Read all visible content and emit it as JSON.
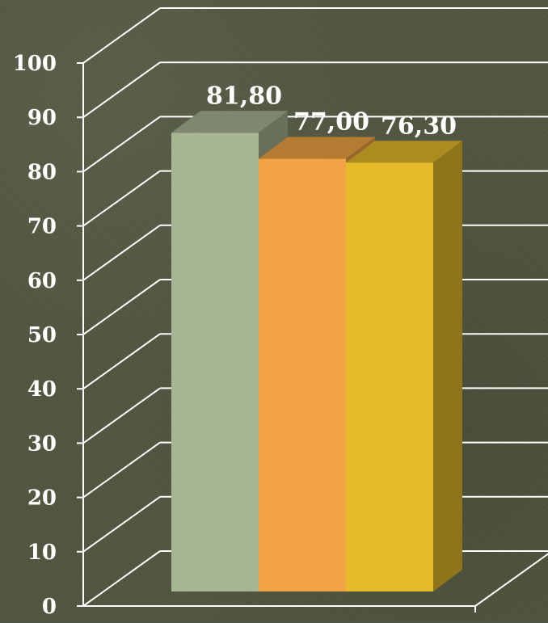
{
  "chart_data": {
    "type": "bar",
    "three_d": true,
    "grid": true,
    "legend": "none",
    "ylim": [
      0,
      100
    ],
    "yticks": [
      0,
      10,
      20,
      30,
      40,
      50,
      60,
      70,
      80,
      90,
      100
    ],
    "ytick_labels": [
      "0",
      "10",
      "20",
      "30",
      "40",
      "50",
      "60",
      "70",
      "80",
      "90",
      "100"
    ],
    "values": [
      81.8,
      77.0,
      76.3
    ],
    "value_labels": [
      "81,80",
      "77,00",
      "76,30"
    ],
    "colors": {
      "bar_1": "#a7b593",
      "bar_2": "#f2a444",
      "bar_3": "#e5bb2a",
      "grid": "#ffffff",
      "text": "#ffffff"
    }
  }
}
